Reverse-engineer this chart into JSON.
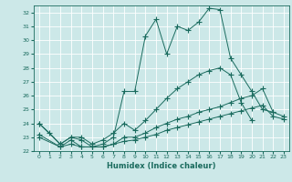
{
  "title": "",
  "xlabel": "Humidex (Indice chaleur)",
  "bg_color": "#cce8e8",
  "grid_color": "#b0d0d0",
  "line_color": "#1a6b5e",
  "xlim": [
    -0.5,
    23.5
  ],
  "ylim": [
    22,
    32.5
  ],
  "xticks": [
    0,
    1,
    2,
    3,
    4,
    5,
    6,
    7,
    8,
    9,
    10,
    11,
    12,
    13,
    14,
    15,
    16,
    17,
    18,
    19,
    20,
    21,
    22,
    23
  ],
  "yticks": [
    22,
    23,
    24,
    25,
    26,
    27,
    28,
    29,
    30,
    31,
    32
  ],
  "s1_x": [
    0,
    1,
    2,
    3,
    4,
    5,
    6,
    7,
    8,
    9,
    10,
    11,
    12,
    13,
    14,
    15,
    16,
    17,
    18,
    19,
    20,
    21,
    22
  ],
  "s1_y": [
    24.0,
    23.3,
    22.5,
    23.0,
    22.8,
    22.3,
    22.5,
    23.0,
    26.3,
    26.3,
    30.3,
    31.5,
    29.0,
    31.0,
    30.7,
    31.3,
    32.3,
    32.2,
    28.7,
    27.5,
    26.3,
    25.0,
    24.8
  ],
  "s2_x": [
    0,
    2,
    3,
    4,
    5,
    6,
    7,
    8,
    9,
    10,
    11,
    12,
    13,
    14,
    15,
    16,
    17,
    18,
    19,
    20
  ],
  "s2_y": [
    24.0,
    22.5,
    23.0,
    23.0,
    22.5,
    22.8,
    23.3,
    24.0,
    23.5,
    24.2,
    25.0,
    25.8,
    26.5,
    27.0,
    27.5,
    27.8,
    28.0,
    27.5,
    25.5,
    24.2
  ],
  "s3_x": [
    0,
    2,
    3,
    4,
    5,
    6,
    7,
    8,
    9,
    10,
    11,
    12,
    13,
    14,
    15,
    16,
    17,
    18,
    19,
    20,
    21,
    22,
    23
  ],
  "s3_y": [
    23.0,
    22.3,
    22.8,
    22.3,
    22.3,
    22.3,
    22.5,
    23.0,
    23.0,
    23.3,
    23.7,
    24.0,
    24.3,
    24.5,
    24.8,
    25.0,
    25.2,
    25.5,
    25.8,
    26.0,
    26.5,
    24.8,
    24.5
  ],
  "s4_x": [
    0,
    2,
    3,
    4,
    5,
    6,
    7,
    8,
    9,
    10,
    11,
    12,
    13,
    14,
    15,
    16,
    17,
    18,
    19,
    20,
    21,
    22,
    23
  ],
  "s4_y": [
    23.2,
    22.3,
    22.5,
    22.3,
    22.3,
    22.3,
    22.5,
    22.7,
    22.8,
    23.0,
    23.2,
    23.5,
    23.7,
    23.9,
    24.1,
    24.3,
    24.5,
    24.7,
    24.9,
    25.1,
    25.3,
    24.5,
    24.3
  ]
}
